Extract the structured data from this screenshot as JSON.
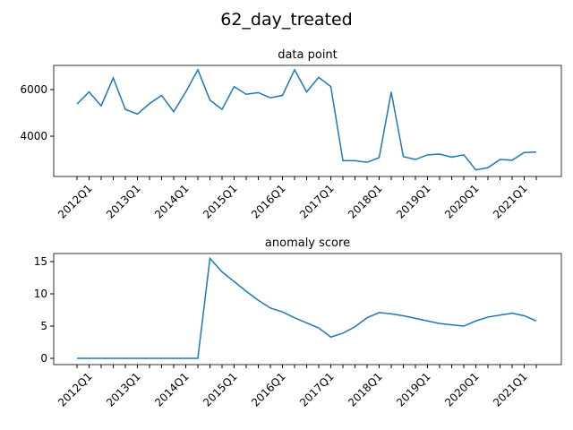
{
  "title": "62_day_treated",
  "chart_data": [
    {
      "type": "line",
      "title": "data point",
      "color": "#1f77b4",
      "categories": [
        null,
        "2012Q1",
        null,
        null,
        null,
        "2013Q1",
        null,
        null,
        null,
        "2014Q1",
        null,
        null,
        null,
        "2015Q1",
        null,
        null,
        null,
        "2016Q1",
        null,
        null,
        null,
        "2017Q1",
        null,
        null,
        null,
        "2018Q1",
        null,
        null,
        null,
        "2019Q1",
        null,
        null,
        null,
        "2020Q1",
        null,
        null,
        null,
        "2021Q1",
        null
      ],
      "values": [
        5380,
        5900,
        5300,
        6500,
        5150,
        4950,
        5400,
        5750,
        5050,
        5900,
        6850,
        5550,
        5150,
        6130,
        5800,
        5870,
        5650,
        5750,
        6850,
        5900,
        6530,
        6130,
        2950,
        2950,
        2880,
        3080,
        5900,
        3120,
        3000,
        3200,
        3230,
        3100,
        3200,
        2550,
        2650,
        3000,
        2970,
        3300,
        3320
      ],
      "ylim": [
        2270,
        7040
      ],
      "yticks": [
        4000,
        6000
      ]
    },
    {
      "type": "line",
      "title": "anomaly score",
      "color": "#1f77b4",
      "categories": [
        null,
        "2012Q1",
        null,
        null,
        null,
        "2013Q1",
        null,
        null,
        null,
        "2014Q1",
        null,
        null,
        null,
        "2015Q1",
        null,
        null,
        null,
        "2016Q1",
        null,
        null,
        null,
        "2017Q1",
        null,
        null,
        null,
        "2018Q1",
        null,
        null,
        null,
        "2019Q1",
        null,
        null,
        null,
        "2020Q1",
        null,
        null,
        null,
        "2021Q1",
        null
      ],
      "values": [
        0,
        0,
        0,
        0,
        0,
        0,
        0,
        0,
        0,
        0,
        0,
        15.5,
        13.4,
        11.9,
        10.4,
        9.0,
        7.8,
        7.2,
        6.3,
        5.5,
        4.7,
        3.3,
        3.9,
        4.9,
        6.3,
        7.1,
        6.9,
        6.6,
        6.2,
        5.8,
        5.4,
        5.2,
        5.0,
        5.8,
        6.4,
        6.7,
        7.0,
        6.6,
        5.8
      ],
      "ylim": [
        -0.97,
        16.25
      ],
      "yticks": [
        0,
        5,
        10,
        15
      ]
    }
  ]
}
